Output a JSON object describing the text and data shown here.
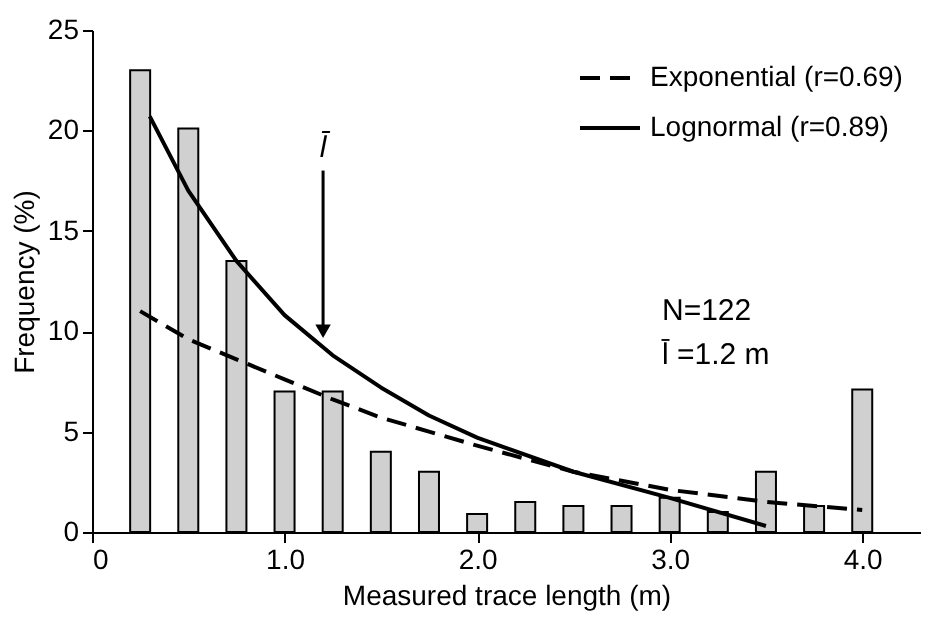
{
  "chart_data": {
    "type": "bar",
    "xlabel": "Measured trace length (m)",
    "ylabel": "Frequency (%)",
    "xlim": [
      0,
      4.3
    ],
    "xticks": [
      0,
      {
        "value": 1,
        "label": "1.0"
      },
      {
        "value": 2,
        "label": "2.0"
      },
      {
        "value": 3,
        "label": "3.0"
      },
      {
        "value": 4,
        "label": "4.0"
      }
    ],
    "ylim": [
      0,
      25
    ],
    "yticks": [
      0,
      5,
      10,
      15,
      20,
      25
    ],
    "grid": false,
    "legend": "top right",
    "series": [
      {
        "color": "#d0d0d0",
        "x": [
          0.25,
          0.5,
          0.75,
          1.0,
          1.25,
          1.5,
          1.75,
          2.0,
          2.25,
          2.5,
          2.75,
          3.0,
          3.25,
          3.5,
          3.75,
          4.0
        ],
        "values": [
          23,
          20.1,
          13.5,
          7,
          7,
          4,
          3,
          0.9,
          1.5,
          1.3,
          1.3,
          1.7,
          1.0,
          3.0,
          1.3,
          7.1
        ]
      },
      {
        "type": "line",
        "name": "Exponential (r=0.69)",
        "color": "#000000",
        "line_style": "dashed",
        "x": [
          0.25,
          0.5,
          0.75,
          1.0,
          1.25,
          1.5,
          1.75,
          2.0,
          2.5,
          3.0,
          3.5,
          4.0
        ],
        "values": [
          11,
          9.6,
          8.6,
          7.6,
          6.6,
          5.7,
          5.0,
          4.3,
          3.0,
          2.1,
          1.5,
          1.1
        ]
      },
      {
        "type": "line",
        "name": "Lognormal (r=0.89)",
        "color": "#000000",
        "line_style": "solid",
        "x": [
          0.3,
          0.5,
          0.75,
          1.0,
          1.25,
          1.5,
          1.75,
          2.0,
          2.5,
          3.0,
          3.5
        ],
        "values": [
          20.7,
          17,
          13.5,
          10.8,
          8.8,
          7.2,
          5.8,
          4.7,
          3.0,
          1.7,
          0.3
        ]
      }
    ],
    "annotations": [
      {
        "text": "l̄",
        "x": 1.2,
        "y": 10
      },
      "N=122",
      "l̄ =1.2 m"
    ]
  }
}
